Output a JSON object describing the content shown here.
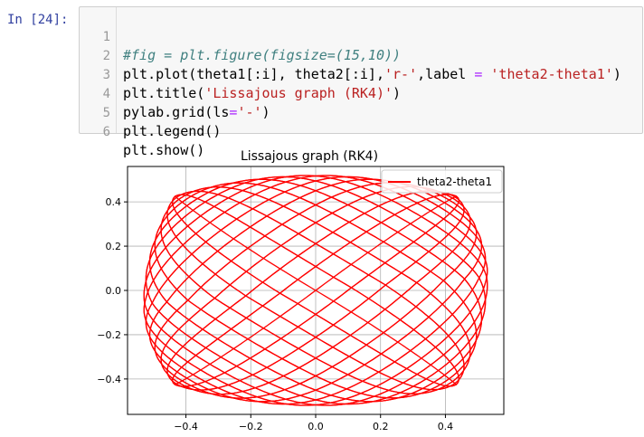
{
  "prompt": "In [24]:",
  "code": {
    "line_numbers": [
      "1",
      "2",
      "3",
      "4",
      "5",
      "6"
    ],
    "lines": [
      [
        "#fig = plt.figure(figsize=(15,10))"
      ],
      [
        "plt.plot(theta1[:i], theta2[:i],",
        "'r-'",
        ",label ",
        "=",
        " ",
        "'theta2-theta1'",
        ")"
      ],
      [
        "plt.title(",
        "'Lissajous graph (RK4)'",
        ")"
      ],
      [
        "pylab.grid(ls",
        "=",
        "'-'",
        ")"
      ],
      [
        "plt.legend()"
      ],
      [
        "plt.show()"
      ]
    ]
  },
  "chart_data": {
    "type": "line",
    "title": "Lissajous graph (RK4)",
    "xlabel": "",
    "ylabel": "",
    "xlim": [
      -0.58,
      0.58
    ],
    "ylim": [
      -0.56,
      0.56
    ],
    "xticks": [
      "−0.4",
      "−0.2",
      "0.0",
      "0.2",
      "0.4"
    ],
    "xtick_values": [
      -0.4,
      -0.2,
      0.0,
      0.2,
      0.4
    ],
    "yticks": [
      "0.4",
      "0.2",
      "0.0",
      "−0.2",
      "−0.4"
    ],
    "ytick_values": [
      0.4,
      0.2,
      0.0,
      -0.2,
      -0.4
    ],
    "grid": true,
    "legend_position": "upper right",
    "series": [
      {
        "name": "theta2-theta1",
        "color": "#ff0000",
        "description_points": {
          "x_extent": [
            -0.53,
            0.53
          ],
          "y_extent": [
            -0.52,
            0.52
          ]
        }
      }
    ]
  }
}
